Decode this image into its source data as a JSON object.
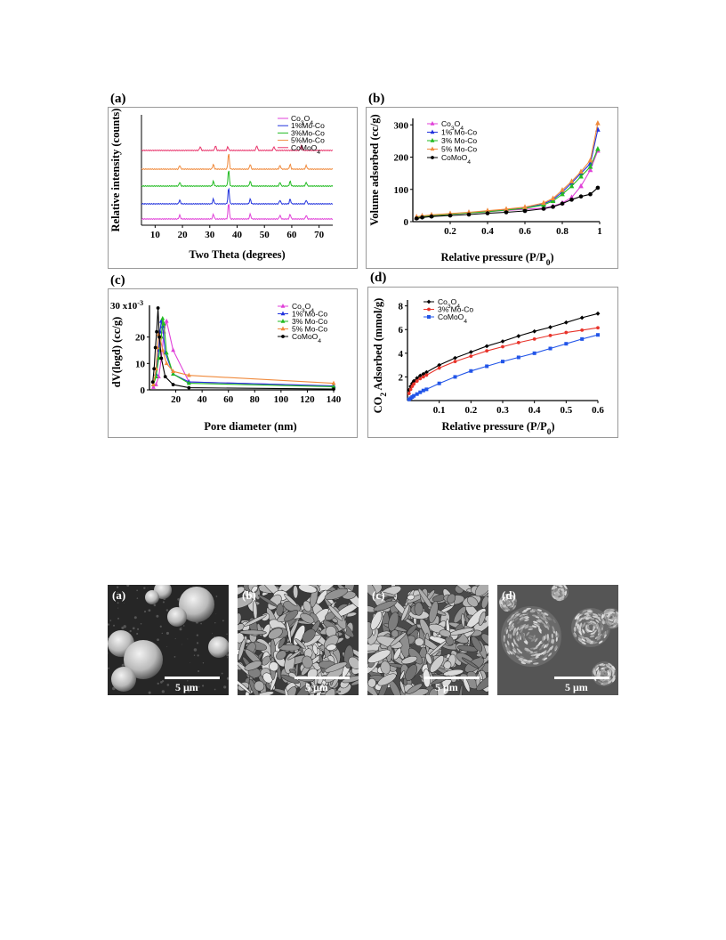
{
  "chart_data": [
    {
      "id": "a",
      "type": "line",
      "panel_label": "(a)",
      "xlabel": "Two Theta (degrees)",
      "ylabel": "Relative intensity (counts)",
      "xlim": [
        5,
        75
      ],
      "xticks": [
        10,
        20,
        30,
        40,
        50,
        60,
        70
      ],
      "legend_position": "top-right",
      "peaks_spinel": [
        19,
        31.3,
        36.9,
        44.8,
        55.7,
        59.4,
        65.3
      ],
      "peaks_comoo4": [
        26.5,
        32.1,
        36.6,
        47.2,
        53.5,
        63.5
      ],
      "series": [
        {
          "name": "Co3O4",
          "color": "#e040d8",
          "offset": 0
        },
        {
          "name": "1%Mo-Co",
          "color": "#2233dd",
          "offset": 1
        },
        {
          "name": "3%Mo-Co",
          "color": "#22bb22",
          "offset": 2
        },
        {
          "name": "5%Mo-Co",
          "color": "#f08a3c",
          "offset": 3
        },
        {
          "name": "CoMoO4",
          "color": "#e8336a",
          "offset": 4
        }
      ]
    },
    {
      "id": "b",
      "type": "line",
      "panel_label": "(b)",
      "xlabel": "Relative pressure (P/P0)",
      "ylabel": "Volume adsorbed (cc/g)",
      "xlim": [
        0,
        1.0
      ],
      "ylim": [
        0,
        320
      ],
      "xticks": [
        0.2,
        0.4,
        0.6,
        0.8,
        1.0
      ],
      "yticks": [
        0,
        100,
        200,
        300
      ],
      "legend_position": "top-left",
      "x": [
        0.02,
        0.05,
        0.1,
        0.2,
        0.3,
        0.4,
        0.5,
        0.6,
        0.7,
        0.75,
        0.8,
        0.85,
        0.9,
        0.95,
        0.99
      ],
      "series": [
        {
          "name": "Co3O4",
          "color": "#e040d8",
          "marker": "triangle",
          "values": [
            12,
            16,
            19,
            23,
            27,
            31,
            35,
            38,
            42,
            48,
            58,
            75,
            110,
            160,
            220
          ]
        },
        {
          "name": "1% Mo-Co",
          "color": "#2233dd",
          "marker": "triangle",
          "values": [
            14,
            17,
            20,
            24,
            28,
            32,
            37,
            42,
            55,
            68,
            92,
            120,
            150,
            180,
            285
          ]
        },
        {
          "name": "3% Mo-Co",
          "color": "#22bb22",
          "marker": "triangle",
          "values": [
            13,
            16,
            19,
            23,
            27,
            31,
            36,
            41,
            52,
            64,
            85,
            110,
            140,
            170,
            225
          ]
        },
        {
          "name": "5% Mo-Co",
          "color": "#f08a3c",
          "marker": "triangle",
          "values": [
            15,
            18,
            21,
            25,
            29,
            34,
            39,
            45,
            58,
            72,
            98,
            125,
            155,
            190,
            305
          ]
        },
        {
          "name": "CoMoO4",
          "color": "#000000",
          "marker": "circle",
          "values": [
            10,
            13,
            16,
            19,
            22,
            26,
            29,
            33,
            40,
            46,
            56,
            68,
            78,
            85,
            105
          ]
        }
      ]
    },
    {
      "id": "c",
      "type": "line",
      "panel_label": "(c)",
      "xlabel": "Pore diameter (nm)",
      "ylabel": "dV(logd) (cc/g)",
      "y_exponent_label": "30 x10",
      "y_exponent": "-3",
      "xlim": [
        0,
        140
      ],
      "ylim": [
        0,
        32
      ],
      "xticks": [
        20,
        40,
        60,
        80,
        100,
        120,
        140
      ],
      "yticks": [
        0,
        10,
        20
      ],
      "legend_position": "top-right",
      "series": [
        {
          "name": "Co3O4",
          "color": "#e040d8",
          "marker": "triangle",
          "x": [
            3,
            5,
            7,
            9,
            11,
            13,
            18,
            30,
            140
          ],
          "y": [
            1,
            2,
            5,
            12,
            22,
            26,
            15,
            3,
            1.5
          ]
        },
        {
          "name": "1% Mo-Co",
          "color": "#2233dd",
          "marker": "triangle",
          "x": [
            3,
            5,
            7,
            8,
            9,
            10,
            12,
            18,
            30,
            140
          ],
          "y": [
            2,
            6,
            15,
            22,
            26,
            24,
            14,
            6,
            3,
            1.5
          ]
        },
        {
          "name": "3% Mo-Co",
          "color": "#22bb22",
          "marker": "triangle",
          "x": [
            3,
            5,
            7,
            9,
            10,
            11,
            13,
            18,
            30,
            140
          ],
          "y": [
            2,
            5,
            12,
            20,
            27,
            25,
            14,
            6,
            2.5,
            1.2
          ]
        },
        {
          "name": "5% Mo-Co",
          "color": "#f08a3c",
          "marker": "triangle",
          "x": [
            3,
            5,
            6,
            7,
            8,
            10,
            13,
            18,
            30,
            140
          ],
          "y": [
            2,
            8,
            16,
            21,
            20,
            15,
            10,
            7,
            5.5,
            2.5
          ]
        },
        {
          "name": "CoMoO4",
          "color": "#000000",
          "marker": "circle",
          "x": [
            2.5,
            3.5,
            4.5,
            5.5,
            6.5,
            7.5,
            9,
            12,
            18,
            30,
            140
          ],
          "y": [
            3,
            8,
            16,
            22,
            31,
            20,
            12,
            5,
            2,
            0.8,
            0.3
          ]
        }
      ]
    },
    {
      "id": "d",
      "type": "line",
      "panel_label": "(d)",
      "xlabel": "Relative pressure (P/P0)",
      "ylabel": "CO2 Adsorbed (mmol/g)",
      "xlim": [
        0,
        0.6
      ],
      "ylim": [
        0,
        8.5
      ],
      "xticks": [
        0.1,
        0.2,
        0.3,
        0.4,
        0.5,
        0.6
      ],
      "yticks": [
        2,
        4,
        6,
        8
      ],
      "legend_position": "top-left",
      "x": [
        0.005,
        0.01,
        0.015,
        0.02,
        0.03,
        0.04,
        0.05,
        0.06,
        0.1,
        0.15,
        0.2,
        0.25,
        0.3,
        0.35,
        0.4,
        0.45,
        0.5,
        0.55,
        0.6
      ],
      "series": [
        {
          "name": "Co3O4",
          "color": "#000000",
          "marker": "diamond",
          "values": [
            0.9,
            1.2,
            1.45,
            1.65,
            1.9,
            2.1,
            2.25,
            2.4,
            3.0,
            3.6,
            4.1,
            4.6,
            5.0,
            5.45,
            5.85,
            6.2,
            6.6,
            7.0,
            7.35
          ]
        },
        {
          "name": "3% Mo-Co",
          "color": "#e8332a",
          "marker": "circle",
          "values": [
            0.6,
            0.95,
            1.2,
            1.4,
            1.65,
            1.85,
            2.0,
            2.15,
            2.75,
            3.3,
            3.75,
            4.2,
            4.55,
            4.9,
            5.2,
            5.5,
            5.75,
            5.95,
            6.15
          ]
        },
        {
          "name": "CoMoO4",
          "color": "#2255e8",
          "marker": "square",
          "values": [
            0.1,
            0.2,
            0.3,
            0.4,
            0.55,
            0.7,
            0.85,
            0.95,
            1.45,
            2.0,
            2.5,
            2.9,
            3.3,
            3.65,
            4.0,
            4.4,
            4.8,
            5.2,
            5.55
          ]
        }
      ]
    }
  ],
  "sem_images": [
    {
      "label": "(a)",
      "scale": "5 μm",
      "morphology": "spheres"
    },
    {
      "label": "(b)",
      "scale": "5 μm",
      "morphology": "flakes"
    },
    {
      "label": "(c)",
      "scale": "5 μm",
      "morphology": "flakes"
    },
    {
      "label": "(d)",
      "scale": "5 μm",
      "morphology": "flower-spheres"
    }
  ]
}
